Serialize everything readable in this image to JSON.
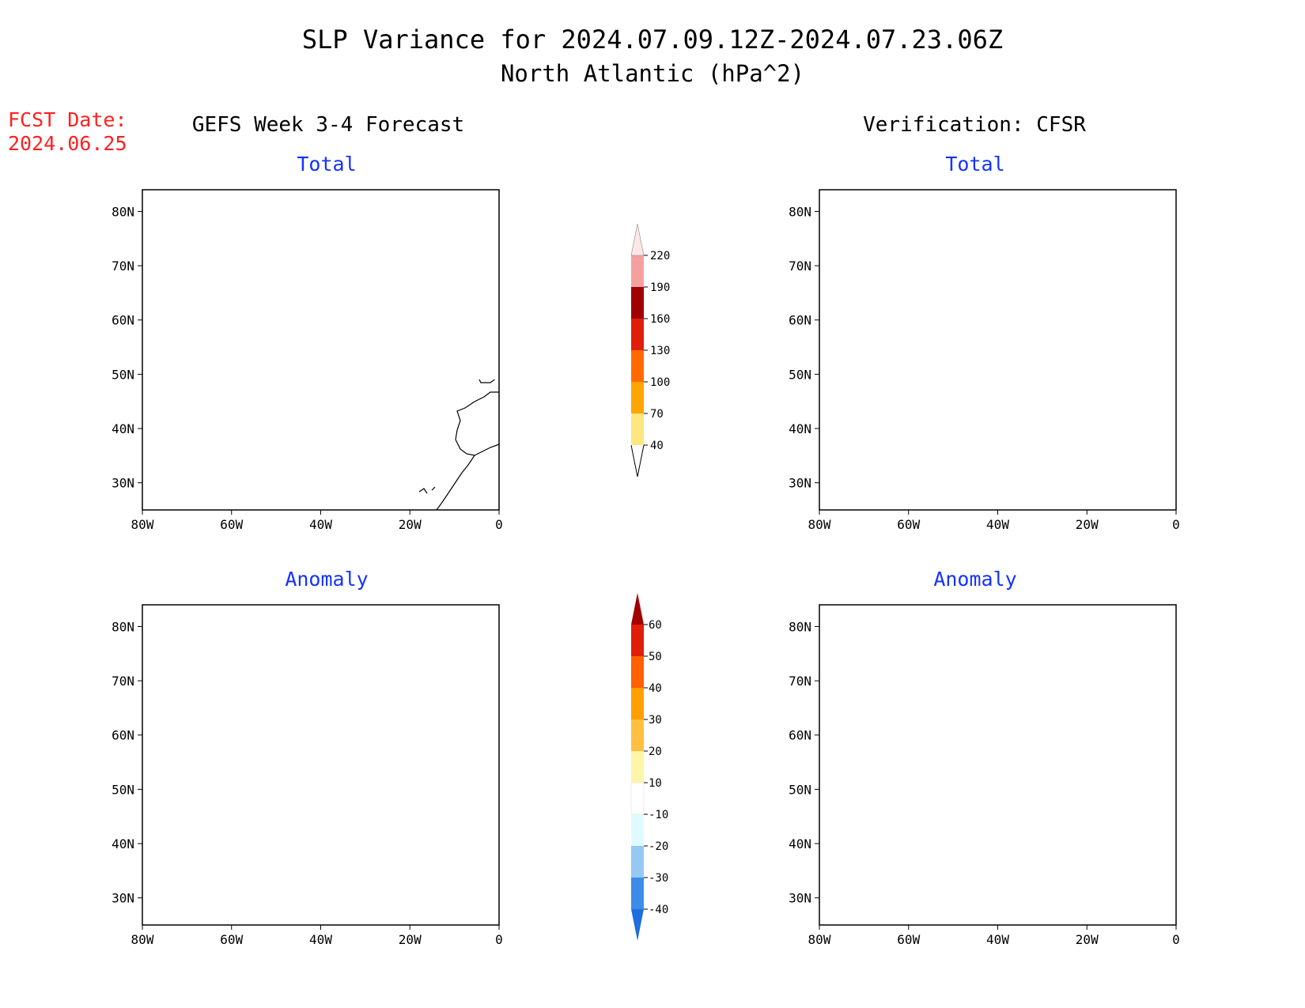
{
  "title": {
    "line1": "SLP Variance for 2024.07.09.12Z-2024.07.23.06Z",
    "line2": "North Atlantic (hPa^2)"
  },
  "fcst_date": {
    "label": "FCST Date:",
    "value": "2024.06.25"
  },
  "columns": {
    "left": "GEFS Week 3-4 Forecast",
    "right": "Verification: CFSR"
  },
  "panel_titles": {
    "total": "Total",
    "anomaly": "Anomaly"
  },
  "axes": {
    "x_ticks": [
      "80W",
      "60W",
      "40W",
      "20W",
      "0"
    ],
    "y_ticks": [
      "80N",
      "70N",
      "60N",
      "50N",
      "40N",
      "30N"
    ],
    "lon_range": [
      -80,
      0
    ],
    "lat_range": [
      25,
      84
    ]
  },
  "colorbars": {
    "total": {
      "labels": [
        "40",
        "70",
        "100",
        "130",
        "160",
        "190",
        "220"
      ],
      "colors": [
        "#ffe680",
        "#ffa500",
        "#ff6a00",
        "#e01e0a",
        "#a00000",
        "#f4a0a0",
        "#fde6e6"
      ]
    },
    "anomaly": {
      "labels": [
        "-40",
        "-30",
        "-20",
        "-10",
        "10",
        "20",
        "30",
        "40",
        "50",
        "60"
      ],
      "colors": [
        "#1e6ee0",
        "#3c8ce8",
        "#96c8f4",
        "#e0fbff",
        "#ffffff",
        "#fff5a8",
        "#ffc040",
        "#ffa000",
        "#ff6000",
        "#e01e0a",
        "#a00000"
      ]
    }
  },
  "colors": {
    "title_text": "#000000",
    "fcst_text": "#ff2020",
    "panel_title": "#1432ff",
    "coast": "#000000"
  }
}
